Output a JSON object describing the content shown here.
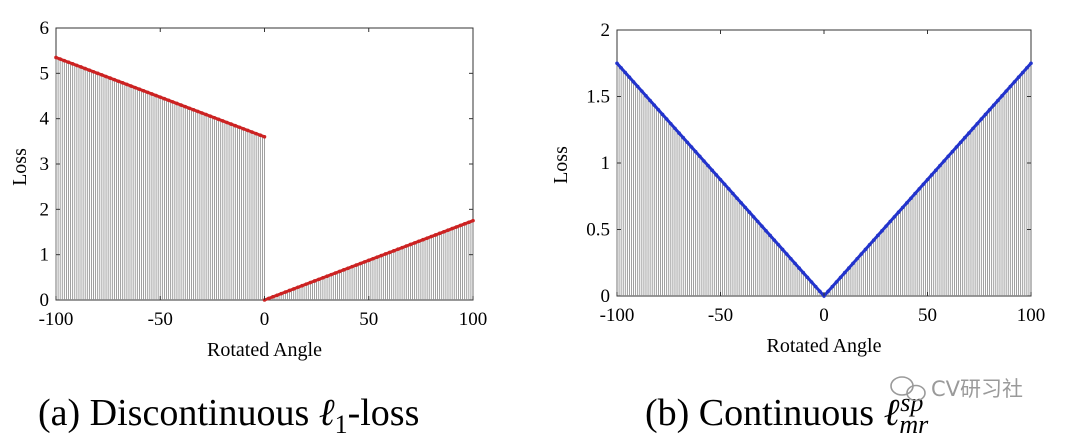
{
  "chart_data": [
    {
      "type": "line",
      "panel": "a",
      "caption": "(a) Discontinuous ℓ₁-loss",
      "caption_main": "(a) Discontinuous ",
      "caption_symbol": "ℓ",
      "caption_subscript": "1",
      "caption_tail": "-loss",
      "xlabel": "Rotated Angle",
      "ylabel": "Loss",
      "xlim": [
        -100,
        100
      ],
      "ylim": [
        0,
        6
      ],
      "xticks": [
        -100,
        -50,
        0,
        50,
        100
      ],
      "yticks": [
        0,
        1,
        2,
        3,
        4,
        5,
        6
      ],
      "line_color": "#cc2222",
      "stem_color": "#888888",
      "fill_below": true,
      "series": [
        {
          "x": [
            -100,
            0
          ],
          "y": [
            5.35,
            3.6
          ]
        },
        {
          "x": [
            0,
            100
          ],
          "y": [
            0,
            1.75
          ]
        }
      ]
    },
    {
      "type": "line",
      "panel": "b",
      "caption": "(b) Continuous ℓ_mr^sp",
      "caption_main": "(b) Continuous ",
      "caption_symbol": "ℓ",
      "caption_subscript": "mr",
      "caption_superscript": "sp",
      "xlabel": "Rotated Angle",
      "ylabel": "Loss",
      "xlim": [
        -100,
        100
      ],
      "ylim": [
        0,
        2
      ],
      "xticks": [
        -100,
        -50,
        0,
        50,
        100
      ],
      "yticks": [
        0,
        0.5,
        1,
        1.5,
        2
      ],
      "line_color": "#2233cc",
      "stem_color": "#888888",
      "fill_below": true,
      "series": [
        {
          "x": [
            -100,
            0,
            100
          ],
          "y": [
            1.75,
            0,
            1.75
          ]
        }
      ]
    }
  ],
  "watermark": {
    "text": "CV研习社",
    "icon": "wechat-icon"
  }
}
